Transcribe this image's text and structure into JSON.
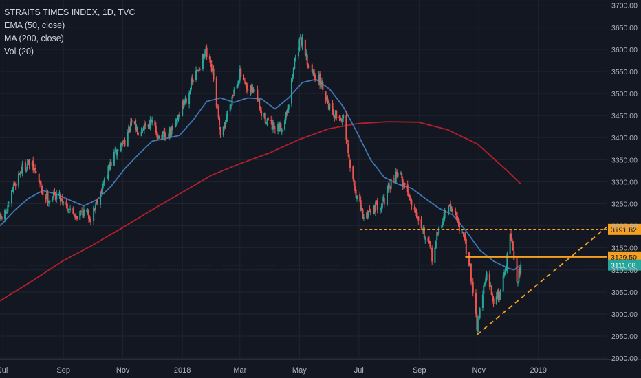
{
  "legend": {
    "title": "STRAITS TIMES INDEX, 1D, TVC",
    "ema": "EMA (50, close)",
    "ma": "MA (200, close)",
    "vol": "Vol (20)"
  },
  "colors": {
    "background": "#131722",
    "grid": "#1f2430",
    "axis_text": "#b2b5be",
    "up_candle": "#26a69a",
    "down_candle": "#ef5350",
    "ema": "#3d77b4",
    "ma": "#b3202c",
    "orange": "#f7a020",
    "price_tag": "#26a69a"
  },
  "chart_data": {
    "type": "candlestick",
    "title": "STRAITS TIMES INDEX, 1D, TVC",
    "xlabel": "",
    "ylabel": "",
    "x_axis_labels": [
      "Jul",
      "Sep",
      "Nov",
      "2018",
      "Mar",
      "May",
      "Jul",
      "Sep",
      "Nov",
      "2019"
    ],
    "x_axis_dates": [
      "2017-07-01",
      "2017-09-01",
      "2017-11-01",
      "2018-01-01",
      "2018-03-01",
      "2018-05-01",
      "2018-07-01",
      "2018-09-01",
      "2018-11-01",
      "2019-01-01"
    ],
    "x_range": [
      "2017-06-28",
      "2019-03-12"
    ],
    "y_axis_labels": [
      "3700.00",
      "3650.00",
      "3600.00",
      "3550.00",
      "3500.00",
      "3450.00",
      "3400.00",
      "3350.00",
      "3300.00",
      "3250.00",
      "3200.00",
      "3150.00",
      "3100.00",
      "3050.00",
      "3000.00",
      "2950.00",
      "2900.00"
    ],
    "ylim": [
      2855,
      3712
    ],
    "grid": true,
    "close_path": [
      [
        "2017-06-28",
        3215
      ],
      [
        "2017-07-06",
        3235
      ],
      [
        "2017-07-12",
        3290
      ],
      [
        "2017-07-20",
        3330
      ],
      [
        "2017-07-28",
        3342
      ],
      [
        "2017-08-04",
        3320
      ],
      [
        "2017-08-11",
        3272
      ],
      [
        "2017-08-18",
        3262
      ],
      [
        "2017-08-25",
        3272
      ],
      [
        "2017-09-01",
        3258
      ],
      [
        "2017-09-08",
        3232
      ],
      [
        "2017-09-15",
        3225
      ],
      [
        "2017-09-22",
        3232
      ],
      [
        "2017-09-29",
        3220
      ],
      [
        "2017-10-06",
        3262
      ],
      [
        "2017-10-13",
        3300
      ],
      [
        "2017-10-20",
        3345
      ],
      [
        "2017-10-27",
        3375
      ],
      [
        "2017-11-03",
        3395
      ],
      [
        "2017-11-10",
        3430
      ],
      [
        "2017-11-17",
        3418
      ],
      [
        "2017-11-24",
        3432
      ],
      [
        "2017-12-01",
        3432
      ],
      [
        "2017-12-08",
        3402
      ],
      [
        "2017-12-15",
        3400
      ],
      [
        "2017-12-22",
        3418
      ],
      [
        "2017-12-29",
        3458
      ],
      [
        "2018-01-05",
        3492
      ],
      [
        "2018-01-12",
        3530
      ],
      [
        "2018-01-19",
        3565
      ],
      [
        "2018-01-25",
        3590
      ],
      [
        "2018-02-01",
        3545
      ],
      [
        "2018-02-06",
        3460
      ],
      [
        "2018-02-09",
        3395
      ],
      [
        "2018-02-16",
        3455
      ],
      [
        "2018-02-23",
        3510
      ],
      [
        "2018-03-01",
        3545
      ],
      [
        "2018-03-09",
        3500
      ],
      [
        "2018-03-16",
        3510
      ],
      [
        "2018-03-23",
        3450
      ],
      [
        "2018-03-29",
        3440
      ],
      [
        "2018-04-06",
        3412
      ],
      [
        "2018-04-13",
        3425
      ],
      [
        "2018-04-20",
        3480
      ],
      [
        "2018-04-27",
        3590
      ],
      [
        "2018-05-04",
        3625
      ],
      [
        "2018-05-11",
        3555
      ],
      [
        "2018-05-18",
        3540
      ],
      [
        "2018-05-25",
        3515
      ],
      [
        "2018-06-01",
        3470
      ],
      [
        "2018-06-08",
        3450
      ],
      [
        "2018-06-15",
        3440
      ],
      [
        "2018-06-22",
        3330
      ],
      [
        "2018-06-29",
        3265
      ],
      [
        "2018-07-06",
        3215
      ],
      [
        "2018-07-13",
        3240
      ],
      [
        "2018-07-20",
        3245
      ],
      [
        "2018-07-27",
        3260
      ],
      [
        "2018-08-03",
        3295
      ],
      [
        "2018-08-10",
        3325
      ],
      [
        "2018-08-17",
        3290
      ],
      [
        "2018-08-24",
        3255
      ],
      [
        "2018-08-31",
        3225
      ],
      [
        "2018-09-07",
        3175
      ],
      [
        "2018-09-14",
        3130
      ],
      [
        "2018-09-21",
        3190
      ],
      [
        "2018-09-28",
        3235
      ],
      [
        "2018-10-05",
        3240
      ],
      [
        "2018-10-12",
        3200
      ],
      [
        "2018-10-19",
        3150
      ],
      [
        "2018-10-26",
        3060
      ],
      [
        "2018-10-30",
        2975
      ],
      [
        "2018-11-05",
        3050
      ],
      [
        "2018-11-09",
        3085
      ],
      [
        "2018-11-16",
        3035
      ],
      [
        "2018-11-22",
        3045
      ],
      [
        "2018-11-30",
        3125
      ],
      [
        "2018-12-03",
        3185
      ],
      [
        "2018-12-06",
        3140
      ],
      [
        "2018-12-10",
        3072
      ],
      [
        "2018-12-14",
        3111
      ]
    ],
    "series": [
      {
        "name": "EMA (50, close)",
        "type": "line",
        "points": [
          [
            "2017-06-28",
            3200
          ],
          [
            "2017-07-13",
            3235
          ],
          [
            "2017-07-27",
            3262
          ],
          [
            "2017-08-11",
            3280
          ],
          [
            "2017-08-25",
            3272
          ],
          [
            "2017-09-08",
            3258
          ],
          [
            "2017-09-22",
            3245
          ],
          [
            "2017-10-06",
            3260
          ],
          [
            "2017-10-20",
            3290
          ],
          [
            "2017-11-03",
            3330
          ],
          [
            "2017-11-17",
            3362
          ],
          [
            "2017-12-01",
            3392
          ],
          [
            "2017-12-15",
            3398
          ],
          [
            "2017-12-29",
            3405
          ],
          [
            "2018-01-12",
            3440
          ],
          [
            "2018-01-26",
            3482
          ],
          [
            "2018-02-09",
            3490
          ],
          [
            "2018-02-23",
            3480
          ],
          [
            "2018-03-09",
            3490
          ],
          [
            "2018-03-23",
            3488
          ],
          [
            "2018-04-06",
            3465
          ],
          [
            "2018-04-20",
            3490
          ],
          [
            "2018-05-04",
            3525
          ],
          [
            "2018-05-18",
            3532
          ],
          [
            "2018-06-01",
            3510
          ],
          [
            "2018-06-15",
            3470
          ],
          [
            "2018-06-29",
            3412
          ],
          [
            "2018-07-13",
            3350
          ],
          [
            "2018-07-27",
            3310
          ],
          [
            "2018-08-10",
            3295
          ],
          [
            "2018-08-24",
            3285
          ],
          [
            "2018-09-07",
            3262
          ],
          [
            "2018-09-21",
            3240
          ],
          [
            "2018-10-05",
            3225
          ],
          [
            "2018-10-19",
            3188
          ],
          [
            "2018-11-02",
            3145
          ],
          [
            "2018-11-16",
            3120
          ],
          [
            "2018-11-30",
            3105
          ],
          [
            "2018-12-07",
            3100
          ],
          [
            "2018-12-14",
            3112
          ]
        ]
      },
      {
        "name": "MA (200, close)",
        "type": "line",
        "points": [
          [
            "2017-06-28",
            3030
          ],
          [
            "2017-07-31",
            3075
          ],
          [
            "2017-08-31",
            3120
          ],
          [
            "2017-09-30",
            3155
          ],
          [
            "2017-10-31",
            3195
          ],
          [
            "2017-11-30",
            3235
          ],
          [
            "2017-12-31",
            3275
          ],
          [
            "2018-01-31",
            3315
          ],
          [
            "2018-02-28",
            3340
          ],
          [
            "2018-03-31",
            3365
          ],
          [
            "2018-04-30",
            3395
          ],
          [
            "2018-05-31",
            3420
          ],
          [
            "2018-06-30",
            3432
          ],
          [
            "2018-07-31",
            3436
          ],
          [
            "2018-08-31",
            3435
          ],
          [
            "2018-09-30",
            3418
          ],
          [
            "2018-10-31",
            3385
          ],
          [
            "2018-11-30",
            3325
          ],
          [
            "2018-12-14",
            3295
          ]
        ]
      }
    ],
    "annotations": [
      {
        "type": "horizontal_level",
        "style": "dashed",
        "value": 3191.82,
        "label": "3191.82",
        "from": "2018-07-02",
        "color": "#f7a020"
      },
      {
        "type": "horizontal_level",
        "style": "solid",
        "value": 3129.5,
        "label": "3129.50",
        "from": "2018-10-18",
        "color": "#f7a020"
      },
      {
        "type": "trend_line",
        "style": "dashed",
        "from": [
          "2018-10-30",
          2953
        ],
        "to": [
          "2019-03-12",
          3197
        ],
        "color": "#f7a020"
      },
      {
        "type": "last_price",
        "style": "dotted",
        "value": 3111.08,
        "label": "3111.08",
        "color": "#26a69a"
      }
    ]
  }
}
